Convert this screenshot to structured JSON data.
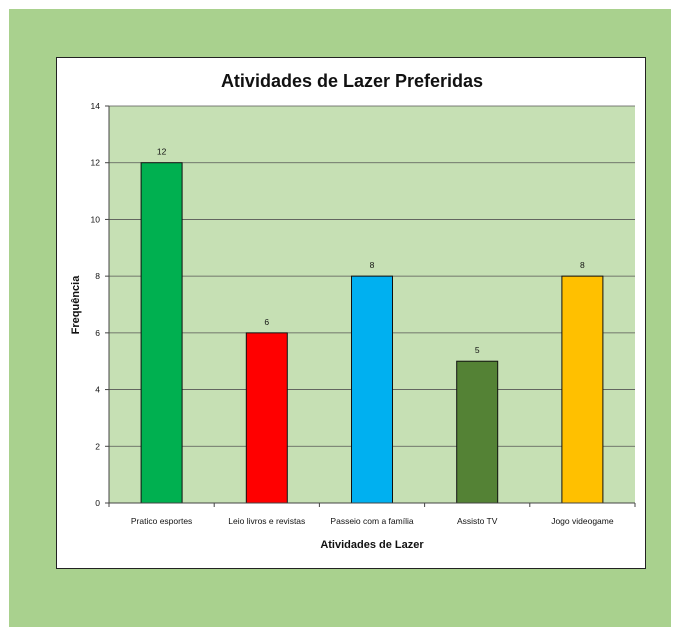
{
  "chart_data": {
    "type": "bar",
    "title": "Atividades de Lazer Preferidas",
    "xlabel": "Atividades de Lazer",
    "ylabel": "Frequência",
    "categories": [
      "Pratico esportes",
      "Leio livros e revistas",
      "Passeio com a família",
      "Assisto TV",
      "Jogo videogame"
    ],
    "values": [
      12,
      6,
      8,
      5,
      8
    ],
    "ylim": [
      0,
      14
    ],
    "yticks": [
      0,
      2,
      4,
      6,
      8,
      10,
      12,
      14
    ],
    "grid": true,
    "legend": "none",
    "colors": [
      "#00b050",
      "#ff0000",
      "#00b0f0",
      "#548235",
      "#ffc000"
    ],
    "plot_background": "#c6e0b4",
    "page_background": "#a9d18e"
  }
}
